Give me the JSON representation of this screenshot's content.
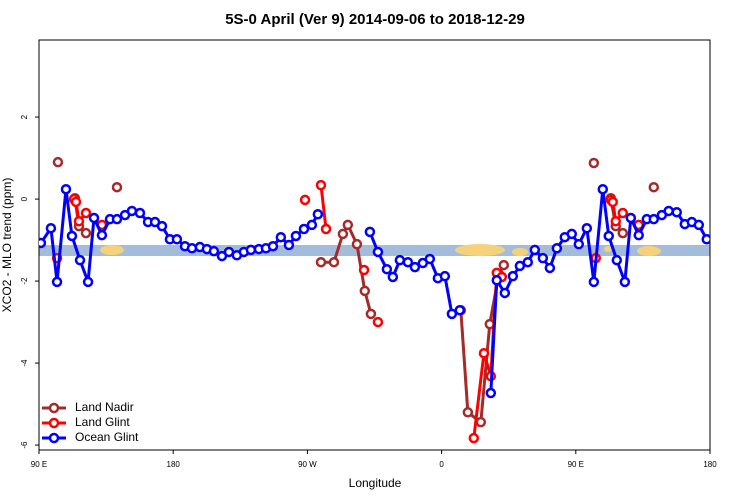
{
  "chart_data": {
    "type": "line",
    "title": "5S-0 April (Ver 9)   2014-09-06 to 2018-12-29",
    "x_label": "Longitude",
    "y_label": "XCO2 - MLO trend (ppm)",
    "xlim": [
      90,
      540
    ],
    "ylim": [
      -6.12,
      3.88
    ],
    "xticks": [
      {
        "value": 90,
        "label": "90 E"
      },
      180,
      {
        "value": 270,
        "label": "90 W"
      },
      {
        "value": 360,
        "label": "0"
      },
      {
        "value": 450,
        "label": "90 E"
      },
      {
        "value": 540,
        "label": "180"
      }
    ],
    "yticks": [
      2,
      0,
      -2,
      -4,
      -6
    ],
    "legend": "bottom-left",
    "series": [
      {
        "name": "Land Nadir",
        "color": "#a52a2a",
        "x": [
          102.7,
          null,
          114.1,
          116.8,
          121.5,
          null,
          142.3,
          null,
          279.1,
          287.8,
          293.8,
          297.1,
          303.2,
          308.5,
          312.6,
          null,
          372.9,
          377.6,
          386.3,
          392.3,
          398.4,
          401.7,
          null,
          462.1,
          null,
          473.5,
          476.8,
          481.5,
          null,
          502.3
        ],
        "values": [
          0.9,
          null,
          0.02,
          -0.66,
          -0.83,
          null,
          0.29,
          null,
          -1.54,
          -1.54,
          -0.85,
          -0.63,
          -1.1,
          -2.24,
          -2.8,
          null,
          -2.71,
          -5.2,
          -5.44,
          -3.05,
          -1.83,
          -1.61,
          null,
          0.88,
          null,
          0.02,
          -0.66,
          -0.83,
          null,
          0.29
        ]
      },
      {
        "name": "Land Glint",
        "color": "#ff0000",
        "x": [
          102.1,
          null,
          113.5,
          114.8,
          116.8,
          121.5,
          132.2,
          null,
          268.4,
          null,
          279.1,
          282.5,
          null,
          308.0,
          null,
          317.3,
          null,
          381.6,
          388.4,
          393.0,
          397.0,
          400.4,
          null,
          463.4,
          null,
          473.5,
          474.8,
          476.8,
          481.5,
          492.2
        ],
        "values": [
          -1.44,
          null,
          0.0,
          -0.07,
          -0.54,
          -0.34,
          -0.63,
          null,
          -0.02,
          null,
          0.34,
          -0.73,
          null,
          -1.73,
          null,
          -3.0,
          null,
          -5.83,
          -3.76,
          -4.32,
          -1.8,
          -1.9,
          null,
          -1.44,
          null,
          -0.02,
          -0.07,
          -0.54,
          -0.34,
          -0.63
        ]
      },
      {
        "name": "Ocean Glint",
        "color": "#0000ff",
        "x": [
          91.3,
          98.0,
          102.1,
          108.1,
          112.1,
          117.5,
          122.9,
          126.9,
          132.2,
          137.6,
          142.3,
          147.7,
          152.3,
          157.7,
          163.1,
          167.8,
          172.5,
          177.8,
          182.5,
          187.9,
          192.6,
          197.9,
          202.6,
          207.3,
          212.7,
          217.4,
          222.7,
          227.4,
          232.1,
          237.5,
          242.2,
          246.9,
          252.2,
          257.6,
          262.3,
          267.7,
          273.0,
          277.0,
          null,
          311.9,
          317.3,
          323.3,
          327.3,
          332.0,
          337.4,
          342.1,
          347.4,
          352.1,
          357.5,
          362.2,
          366.9,
          372.2,
          null,
          393.0,
          397.0,
          402.4,
          407.8,
          412.5,
          417.8,
          422.5,
          427.9,
          432.6,
          437.3,
          442.6,
          447.3,
          452.0,
          457.4,
          462.1,
          468.1,
          472.1,
          477.5,
          482.9,
          486.9,
          492.2,
          497.6,
          502.3,
          507.7,
          512.3,
          517.7,
          523.1,
          527.8,
          532.5,
          537.8
        ],
        "values": [
          -1.07,
          -0.71,
          -2.02,
          0.24,
          -0.9,
          -1.49,
          -2.02,
          -0.46,
          -0.88,
          -0.49,
          -0.49,
          -0.39,
          -0.29,
          -0.34,
          -0.56,
          -0.56,
          -0.66,
          -0.98,
          -0.98,
          -1.15,
          -1.2,
          -1.17,
          -1.22,
          -1.27,
          -1.39,
          -1.29,
          -1.37,
          -1.29,
          -1.24,
          -1.22,
          -1.2,
          -1.15,
          -0.93,
          -1.12,
          -0.9,
          -0.73,
          -0.63,
          -0.37,
          null,
          -0.8,
          -1.29,
          -1.71,
          -1.9,
          -1.49,
          -1.54,
          -1.66,
          -1.56,
          -1.46,
          -1.93,
          -1.88,
          -2.8,
          -2.71,
          null,
          -4.73,
          -1.98,
          -2.29,
          -1.88,
          -1.63,
          -1.54,
          -1.24,
          -1.44,
          -1.68,
          -1.2,
          -0.93,
          -0.85,
          -1.1,
          -0.71,
          -2.02,
          0.24,
          -0.9,
          -1.49,
          -2.02,
          -0.46,
          -0.88,
          -0.49,
          -0.49,
          -0.39,
          -0.29,
          -0.32,
          -0.61,
          -0.56,
          -0.63,
          -0.98
        ]
      }
    ]
  }
}
